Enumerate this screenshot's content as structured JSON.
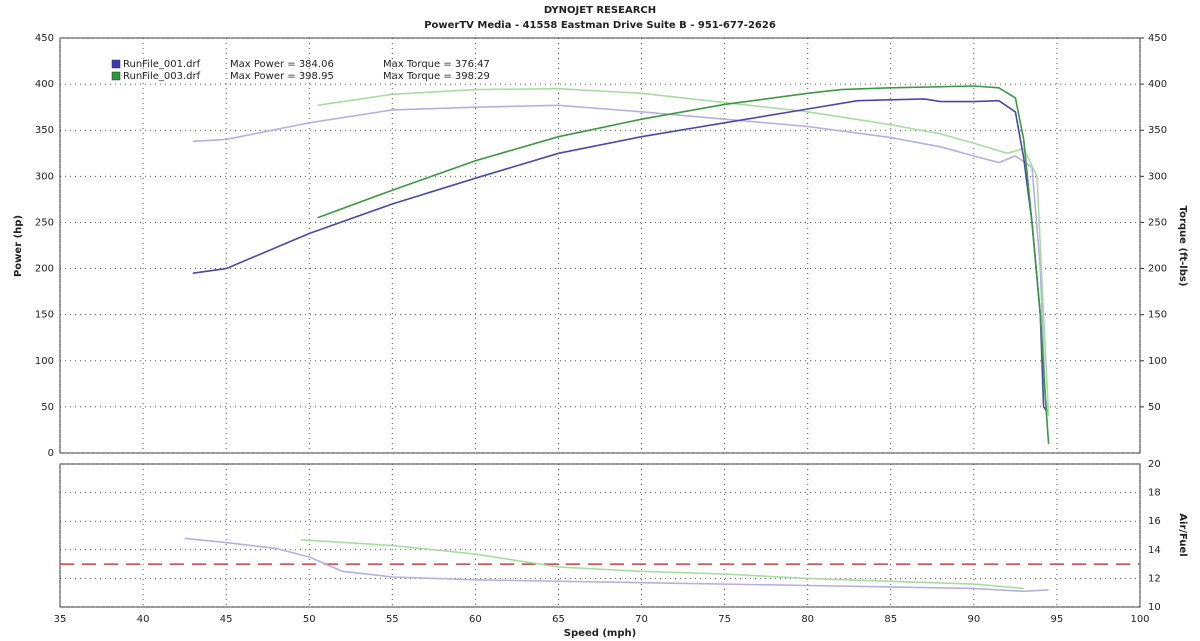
{
  "chart_data": [
    {
      "type": "line",
      "title": "DYNOJET RESEARCH",
      "subtitle": "PowerTV Media - 41558 Eastman Drive Suite B - 951-677-2626",
      "y_label": "Power (hp)",
      "y2_label": "Torque (ft-lbs)",
      "xlim": [
        35,
        100
      ],
      "xticks": [
        35,
        40,
        45,
        50,
        55,
        60,
        65,
        70,
        75,
        80,
        85,
        90,
        95,
        100
      ],
      "ylim": [
        0,
        450
      ],
      "yticks": [
        0,
        50,
        100,
        150,
        200,
        250,
        300,
        350,
        400,
        450
      ],
      "y2lim": [
        0,
        450
      ],
      "y2ticks": [
        50,
        100,
        150,
        200,
        250,
        300,
        350,
        400,
        450
      ],
      "grid": true,
      "legend": [
        {
          "name": "RunFile_001.drf",
          "power": "Max Power = 384.06",
          "torque": "Max Torque = 376.47",
          "color": "#3a3ab0"
        },
        {
          "name": "RunFile_003.drf",
          "power": "Max Power = 398.95",
          "torque": "Max Torque = 398.29",
          "color": "#2a9a3a"
        }
      ],
      "series": [
        {
          "color": "#b4b0e0",
          "axis": "y2",
          "x": [
            43,
            45,
            50,
            55,
            60,
            65,
            70,
            75,
            80,
            85,
            88,
            90,
            91.5,
            92.5,
            93.5,
            94,
            94.3,
            94.5
          ],
          "values": [
            338,
            340,
            358,
            372,
            375,
            377,
            370,
            362,
            354,
            342,
            332,
            322,
            315,
            322,
            310,
            200,
            60,
            40
          ]
        },
        {
          "color": "#a8dca0",
          "axis": "y2",
          "x": [
            50.5,
            55,
            60,
            65,
            70,
            75,
            80,
            85,
            88,
            90,
            92,
            93,
            93.8,
            94.2,
            94.5
          ],
          "values": [
            377,
            389,
            394,
            395,
            390,
            380,
            370,
            356,
            346,
            336,
            325,
            330,
            300,
            150,
            40
          ]
        },
        {
          "color": "#4a48a8",
          "x": [
            43,
            45,
            50,
            55,
            60,
            65,
            70,
            75,
            80,
            83,
            85,
            87,
            88,
            90,
            91.5,
            92.5,
            93,
            93.5,
            94,
            94.2,
            94.4
          ],
          "values": [
            195,
            200,
            238,
            270,
            298,
            325,
            343,
            358,
            373,
            382,
            383,
            384,
            381,
            381,
            382,
            370,
            320,
            250,
            150,
            50,
            45
          ]
        },
        {
          "color": "#3a9a40",
          "x": [
            50.5,
            55,
            60,
            65,
            70,
            75,
            80,
            82,
            85,
            90,
            91.5,
            92.5,
            93,
            93.5,
            94,
            94.3,
            94.5
          ],
          "values": [
            255,
            285,
            317,
            343,
            362,
            378,
            390,
            394,
            396,
            398,
            396,
            385,
            340,
            250,
            150,
            60,
            10
          ]
        }
      ]
    },
    {
      "type": "line",
      "x_label": "Speed (mph)",
      "y2_label": "Air/Fuel",
      "xlim": [
        35,
        100
      ],
      "xticks": [
        35,
        40,
        45,
        50,
        55,
        60,
        65,
        70,
        75,
        80,
        85,
        90,
        95,
        100
      ],
      "y2lim": [
        10,
        20
      ],
      "y2ticks": [
        10,
        12,
        14,
        16,
        18,
        20
      ],
      "grid": true,
      "reference_line": 13,
      "reference_color": "#c84040",
      "series": [
        {
          "color": "#b4b0e0",
          "axis": "y2",
          "x": [
            42.5,
            45,
            48,
            50,
            52,
            55,
            60,
            70,
            80,
            90,
            93,
            94.5
          ],
          "values": [
            14.8,
            14.5,
            14.1,
            13.5,
            12.5,
            12.1,
            11.9,
            11.7,
            11.5,
            11.3,
            11.1,
            11.2
          ]
        },
        {
          "color": "#a8dca0",
          "axis": "y2",
          "x": [
            49.5,
            55,
            60,
            65,
            70,
            75,
            80,
            85,
            90,
            93
          ],
          "values": [
            14.7,
            14.3,
            13.7,
            12.8,
            12.5,
            12.3,
            12.0,
            11.8,
            11.6,
            11.3
          ]
        }
      ]
    }
  ]
}
